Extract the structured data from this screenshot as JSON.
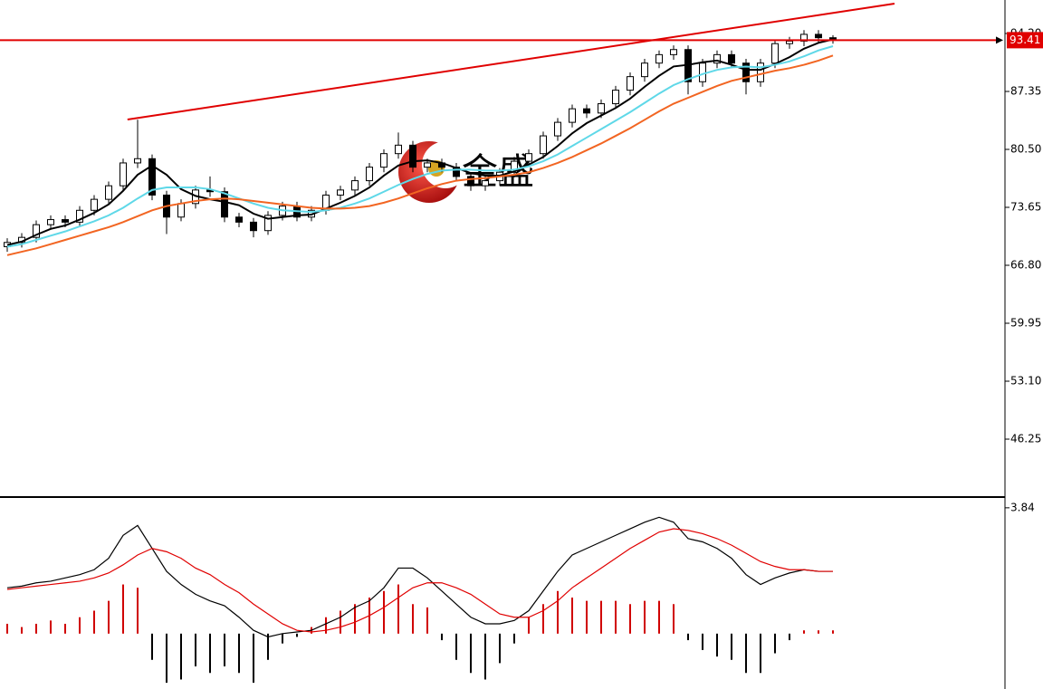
{
  "chart_data": [
    {
      "type": "candlestick",
      "open": [
        69.0,
        69.5,
        70.1,
        71.6,
        72.2,
        71.9,
        73.3,
        74.6,
        76.2,
        78.9,
        79.4,
        75.1,
        72.5,
        74.1,
        75.7,
        75.5,
        72.5,
        71.9,
        70.9,
        72.7,
        73.8,
        72.5,
        73.3,
        75.1,
        75.7,
        76.8,
        78.4,
        80.0,
        81.0,
        78.4,
        78.9,
        78.4,
        77.3,
        76.2,
        76.8,
        77.8,
        79.1,
        80.0,
        82.1,
        83.7,
        85.3,
        84.8,
        85.9,
        87.5,
        89.1,
        90.7,
        91.7,
        92.3,
        88.5,
        90.7,
        91.7,
        90.7,
        88.5,
        90.7,
        93.0,
        93.3,
        94.1,
        93.7
      ],
      "high": [
        70.0,
        70.6,
        72.1,
        72.7,
        72.7,
        73.8,
        75.1,
        76.7,
        79.4,
        84.0,
        79.9,
        75.6,
        74.6,
        76.2,
        77.3,
        76.0,
        73.0,
        72.4,
        73.2,
        74.3,
        74.3,
        73.8,
        75.6,
        76.2,
        77.3,
        78.9,
        80.5,
        82.5,
        81.5,
        79.4,
        79.4,
        78.9,
        77.8,
        77.3,
        78.3,
        79.6,
        80.5,
        82.6,
        84.2,
        85.8,
        85.8,
        86.4,
        88.0,
        89.6,
        91.2,
        92.2,
        92.8,
        92.8,
        91.2,
        92.2,
        92.2,
        91.2,
        91.2,
        93.5,
        93.8,
        94.6,
        94.6,
        94.0
      ],
      "low": [
        68.4,
        68.9,
        69.5,
        71.0,
        71.3,
        71.3,
        72.7,
        74.0,
        75.6,
        78.3,
        74.5,
        70.5,
        72.0,
        73.5,
        74.9,
        71.9,
        71.3,
        70.1,
        70.4,
        72.1,
        72.0,
        72.0,
        72.8,
        74.5,
        75.1,
        76.2,
        77.8,
        79.4,
        77.8,
        77.8,
        77.8,
        76.7,
        75.6,
        75.6,
        76.2,
        77.2,
        78.5,
        79.4,
        81.5,
        83.1,
        84.2,
        84.2,
        85.3,
        86.9,
        88.5,
        90.1,
        91.1,
        87.0,
        87.9,
        90.1,
        90.1,
        87.0,
        87.9,
        90.1,
        92.4,
        92.7,
        93.1,
        93.0
      ],
      "close": [
        69.5,
        70.1,
        71.6,
        72.2,
        71.9,
        73.3,
        74.6,
        76.2,
        78.9,
        79.4,
        75.1,
        72.5,
        74.1,
        75.7,
        75.5,
        72.5,
        71.9,
        70.9,
        72.7,
        73.8,
        72.5,
        73.3,
        75.1,
        75.7,
        76.8,
        78.4,
        80.0,
        81.0,
        78.4,
        78.9,
        78.4,
        77.3,
        76.2,
        76.8,
        77.8,
        79.1,
        80.0,
        82.1,
        83.7,
        85.3,
        84.8,
        85.9,
        87.5,
        89.1,
        90.7,
        91.7,
        92.3,
        88.5,
        90.7,
        91.7,
        90.7,
        88.5,
        90.7,
        93.0,
        93.3,
        94.1,
        93.7,
        93.41
      ],
      "series": [
        {
          "color": "#000000",
          "values": [
            69.2,
            69.6,
            70.4,
            71.1,
            71.5,
            72.2,
            73.0,
            74.0,
            75.6,
            77.5,
            78.6,
            77.5,
            75.8,
            75.0,
            74.6,
            74.3,
            73.9,
            72.9,
            72.3,
            72.5,
            72.7,
            72.8,
            73.5,
            74.2,
            75.0,
            76.0,
            77.4,
            78.6,
            79.1,
            79.2,
            78.9,
            78.3,
            77.7,
            77.4,
            77.4,
            77.9,
            78.7,
            79.6,
            80.9,
            82.4,
            83.6,
            84.5,
            85.4,
            86.5,
            87.9,
            89.2,
            90.3,
            90.5,
            90.8,
            91.0,
            90.5,
            89.9,
            89.9,
            90.6,
            91.4,
            92.4,
            93.1,
            93.5
          ]
        },
        {
          "color": "#5fd8e8",
          "values": [
            69.0,
            69.3,
            69.8,
            70.3,
            70.8,
            71.4,
            72.0,
            72.7,
            73.6,
            74.7,
            75.7,
            76.0,
            76.0,
            76.0,
            75.8,
            75.3,
            74.7,
            74.1,
            73.6,
            73.3,
            73.2,
            73.1,
            73.3,
            73.6,
            74.1,
            74.7,
            75.5,
            76.3,
            77.0,
            77.6,
            78.0,
            78.1,
            78.1,
            78.0,
            78.0,
            78.1,
            78.5,
            79.1,
            79.9,
            80.9,
            81.9,
            82.9,
            83.9,
            84.9,
            86.0,
            87.1,
            88.1,
            88.8,
            89.4,
            89.9,
            90.2,
            90.3,
            90.2,
            90.5,
            90.9,
            91.5,
            92.2,
            92.7
          ]
        },
        {
          "color": "#f26522",
          "values": [
            68.0,
            68.4,
            68.8,
            69.3,
            69.8,
            70.3,
            70.8,
            71.3,
            71.9,
            72.6,
            73.3,
            73.8,
            74.1,
            74.4,
            74.6,
            74.7,
            74.6,
            74.4,
            74.2,
            74.0,
            73.8,
            73.6,
            73.5,
            73.5,
            73.6,
            73.8,
            74.2,
            74.7,
            75.3,
            75.9,
            76.4,
            76.8,
            77.0,
            77.1,
            77.3,
            77.5,
            77.8,
            78.3,
            78.9,
            79.6,
            80.4,
            81.2,
            82.1,
            83.0,
            84.0,
            85.0,
            85.9,
            86.6,
            87.3,
            88.0,
            88.6,
            89.0,
            89.4,
            89.8,
            90.1,
            90.5,
            91.0,
            91.6
          ]
        }
      ],
      "last_price": 93.41,
      "trendline": {
        "x": [
          8.3,
          61.25
        ],
        "y": [
          84.03,
          97.73
        ]
      },
      "watermark": "金盛",
      "ylim": [
        39.51,
        98.16
      ],
      "yticks": [
        {
          "value": 94.2,
          "label": "94.20"
        },
        87.35,
        {
          "value": 80.5,
          "label": "80.50"
        },
        73.65,
        {
          "value": 66.8,
          "label": "66.80"
        },
        59.95,
        {
          "value": 53.1,
          "label": "53.10"
        },
        46.25
      ],
      "up_color": "#ffffff",
      "down_color": "#000000",
      "line_color": "#e00000"
    },
    {
      "type": "macd",
      "series": [
        {
          "color": "#000000",
          "values": [
            1.4,
            1.45,
            1.55,
            1.6,
            1.7,
            1.8,
            1.95,
            2.3,
            3.0,
            3.3,
            2.6,
            1.9,
            1.5,
            1.2,
            1.0,
            0.85,
            0.5,
            0.1,
            -0.1,
            0.0,
            0.05,
            0.1,
            0.3,
            0.5,
            0.8,
            1.0,
            1.4,
            2.0,
            2.0,
            1.7,
            1.3,
            0.9,
            0.5,
            0.3,
            0.3,
            0.4,
            0.7,
            1.3,
            1.9,
            2.4,
            2.6,
            2.8,
            3.0,
            3.2,
            3.4,
            3.55,
            3.4,
            2.9,
            2.8,
            2.6,
            2.3,
            1.8,
            1.5,
            1.7,
            1.85,
            1.95,
            1.9,
            1.9
          ]
        },
        {
          "color": "#e00000",
          "values": [
            1.35,
            1.4,
            1.45,
            1.5,
            1.55,
            1.6,
            1.7,
            1.85,
            2.1,
            2.4,
            2.6,
            2.5,
            2.3,
            2.0,
            1.8,
            1.5,
            1.25,
            0.9,
            0.6,
            0.3,
            0.1,
            0.05,
            0.1,
            0.2,
            0.35,
            0.55,
            0.8,
            1.1,
            1.4,
            1.55,
            1.55,
            1.4,
            1.2,
            0.9,
            0.6,
            0.5,
            0.5,
            0.7,
            1.0,
            1.4,
            1.7,
            2.0,
            2.3,
            2.6,
            2.85,
            3.1,
            3.2,
            3.15,
            3.05,
            2.9,
            2.7,
            2.45,
            2.2,
            2.05,
            1.95,
            1.95,
            1.9,
            1.9
          ]
        }
      ],
      "histogram": [
        0.3,
        0.2,
        0.3,
        0.4,
        0.3,
        0.5,
        0.7,
        1.0,
        1.5,
        1.4,
        -0.8,
        -1.5,
        -1.4,
        -1.0,
        -1.2,
        -1.0,
        -1.2,
        -1.5,
        -0.8,
        -0.3,
        -0.1,
        0.2,
        0.5,
        0.7,
        0.9,
        1.1,
        1.3,
        1.5,
        0.9,
        0.8,
        -0.2,
        -0.8,
        -1.2,
        -1.4,
        -0.9,
        -0.3,
        0.5,
        0.9,
        1.3,
        1.1,
        1.0,
        1.0,
        1.0,
        0.9,
        1.0,
        1.0,
        0.9,
        -0.2,
        -0.5,
        -0.7,
        -0.8,
        -1.2,
        -1.2,
        -0.6,
        -0.2,
        0.1,
        0.1,
        0.1
      ],
      "positive_color": "#d00000",
      "negative_color": "#000000",
      "ylim": [
        -1.69,
        4.14
      ],
      "yticks": [
        3.84
      ]
    }
  ]
}
